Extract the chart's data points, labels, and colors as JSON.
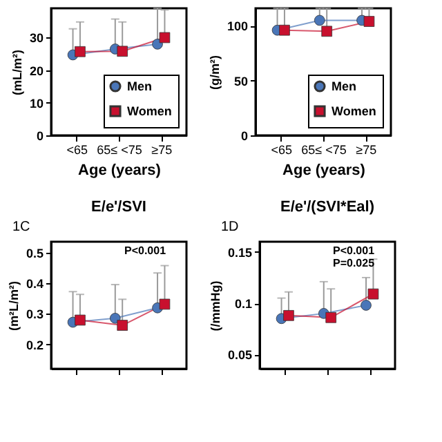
{
  "chart_data": [
    {
      "type": "line",
      "xlabel": "Age (years)",
      "ylabel": "(mL/m²)",
      "categories": [
        "<65",
        "65≤ <75",
        "≥75"
      ],
      "ylim": [
        0,
        39
      ],
      "yticks": [
        0,
        10,
        20,
        30
      ],
      "legend": "bottom right",
      "grid": false,
      "series": [
        {
          "name": "Men",
          "color": "#4a76b8",
          "marker": "circle",
          "values": [
            24.7,
            26.5,
            28
          ],
          "errors": [
            [
              24.7,
              32.7
            ],
            [
              26.5,
              35.7
            ],
            [
              28,
              39
            ]
          ]
        },
        {
          "name": "Women",
          "color": "#c8102e",
          "marker": "square",
          "values": [
            25.7,
            25.8,
            30
          ],
          "errors": [
            [
              25.7,
              34.8
            ],
            [
              25.8,
              34.8
            ],
            [
              30,
              38.5
            ]
          ]
        }
      ]
    },
    {
      "type": "line",
      "xlabel": "Age (years)",
      "ylabel": "(g/m²)",
      "categories": [
        "<65",
        "65≤ <75",
        "≥75"
      ],
      "ylim": [
        0,
        116
      ],
      "yticks": [
        0,
        50,
        100
      ],
      "legend": "bottom right",
      "grid": false,
      "series": [
        {
          "name": "Men",
          "color": "#4a76b8",
          "marker": "circle",
          "values": [
            96,
            105,
            105
          ],
          "errors": [
            [
              96,
              116
            ],
            [
              105,
              116
            ],
            [
              105,
              116
            ]
          ]
        },
        {
          "name": "Women",
          "color": "#c8102e",
          "marker": "square",
          "values": [
            96,
            95,
            104
          ],
          "errors": [
            [
              96,
              116
            ],
            [
              95,
              116
            ],
            [
              104,
              116
            ]
          ]
        }
      ]
    },
    {
      "type": "line",
      "title": "E/e'/SVI",
      "ylabel": "(m²L/m²)",
      "categories": [
        null,
        null,
        null
      ],
      "ylim": [
        0.12,
        0.535
      ],
      "yticks": [
        0.2,
        0.3,
        0.4,
        0.5
      ],
      "tick_labels": "y",
      "grid": false,
      "annotations": [
        "1C",
        "P<0.001"
      ],
      "series": [
        {
          "color": "#4a76b8",
          "marker": "circle",
          "values": [
            0.272,
            0.285,
            0.319
          ],
          "errors": [
            [
              0.272,
              0.372
            ],
            [
              0.285,
              0.395
            ],
            [
              0.319,
              0.433
            ]
          ]
        },
        {
          "color": "#c8102e",
          "marker": "square",
          "values": [
            0.279,
            0.262,
            0.331
          ],
          "errors": [
            [
              0.279,
              0.363
            ],
            [
              0.262,
              0.347
            ],
            [
              0.331,
              0.457
            ]
          ]
        }
      ]
    },
    {
      "type": "line",
      "title": "E/e'/(SVI*Eal)",
      "ylabel": "(/mmHg)",
      "categories": [
        null,
        null,
        null
      ],
      "ylim": [
        0.036,
        0.16
      ],
      "yticks": [
        0.05,
        0.1,
        0.15
      ],
      "tick_labels": "y",
      "grid": false,
      "annotations": [
        "1D",
        "P<0.001",
        "P=0.025"
      ],
      "series": [
        {
          "color": "#4a76b8",
          "marker": "circle",
          "values": [
            0.085,
            0.09,
            0.098
          ],
          "errors": [
            [
              0.085,
              0.105
            ],
            [
              0.09,
              0.121
            ],
            [
              0.098,
              0.125
            ]
          ]
        },
        {
          "color": "#c8102e",
          "marker": "square",
          "values": [
            0.088,
            0.086,
            0.109
          ],
          "errors": [
            [
              0.088,
              0.111
            ],
            [
              0.086,
              0.114
            ],
            [
              0.109,
              0.143
            ]
          ]
        }
      ]
    }
  ]
}
